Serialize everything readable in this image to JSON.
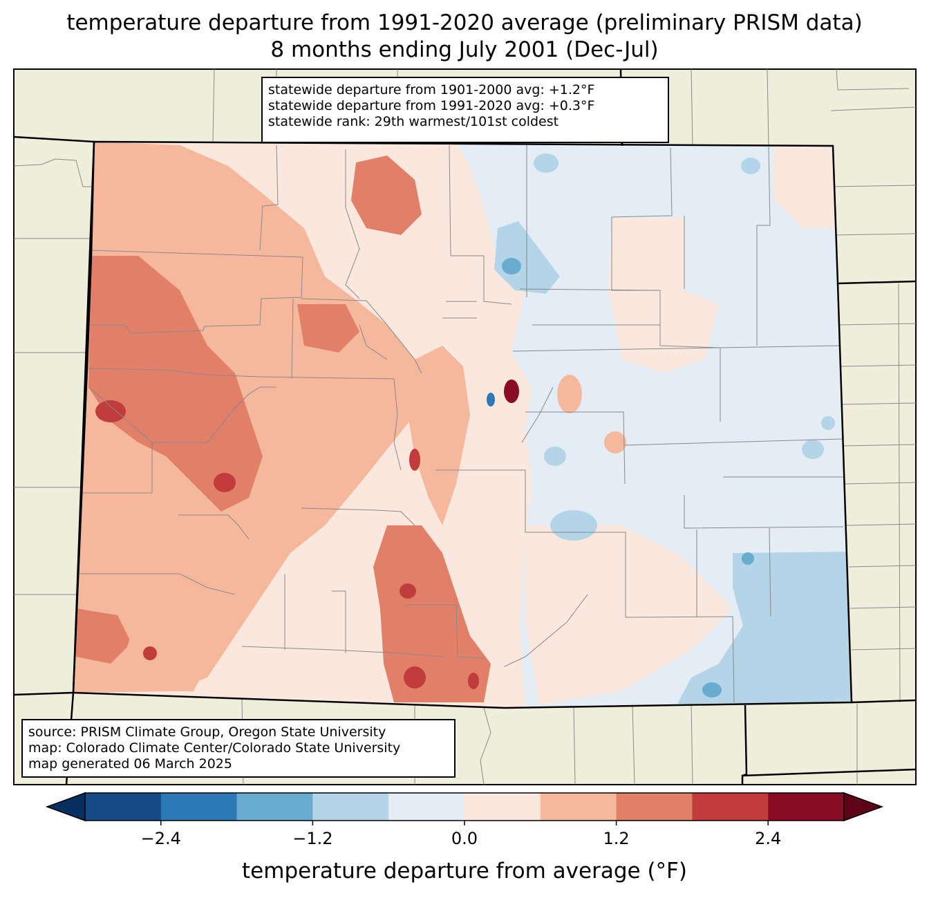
{
  "title": {
    "line1": "temperature departure from 1991-2020 average (preliminary PRISM data)",
    "line2": "8 months ending July 2001 (Dec-Jul)"
  },
  "stats": {
    "line1": "statewide departure from 1901-2000 avg: +1.2°F",
    "line2": "statewide departure from 1991-2020 avg: +0.3°F",
    "line3": "statewide rank: 29th warmest/101st coldest"
  },
  "source": {
    "line1": "source: PRISM Climate Group, Oregon State University",
    "line2": "map: Colorado Climate Center/Colorado State University",
    "line3": "map generated 06 March 2025"
  },
  "colorbar": {
    "title": "temperature departure from average (°F)",
    "ticks": [
      {
        "value": -2.4,
        "label": "−2.4"
      },
      {
        "value": -1.2,
        "label": "−1.2"
      },
      {
        "value": 0.0,
        "label": "0.0"
      },
      {
        "value": 1.2,
        "label": "1.2"
      },
      {
        "value": 2.4,
        "label": "2.4"
      }
    ],
    "range": [
      -3.0,
      3.0
    ],
    "bins": [
      {
        "from": -3.0,
        "to": -2.4,
        "color": "#144a85"
      },
      {
        "from": -2.4,
        "to": -1.8,
        "color": "#2c79b5"
      },
      {
        "from": -1.8,
        "to": -1.2,
        "color": "#6aacd0"
      },
      {
        "from": -1.2,
        "to": -0.6,
        "color": "#b3d5e7"
      },
      {
        "from": -0.6,
        "to": 0.0,
        "color": "#e4edf5"
      },
      {
        "from": 0.0,
        "to": 0.6,
        "color": "#fae8de"
      },
      {
        "from": 0.6,
        "to": 1.2,
        "color": "#f6b89c"
      },
      {
        "from": 1.2,
        "to": 1.8,
        "color": "#e17f69"
      },
      {
        "from": 1.8,
        "to": 2.4,
        "color": "#c13c3c"
      },
      {
        "from": 2.4,
        "to": 3.0,
        "color": "#880c24"
      }
    ],
    "under_color": "#05305f",
    "over_color": "#5e0418"
  },
  "colors": {
    "land": "#efeedb",
    "state_border": "#000000",
    "county_border": "#888888"
  }
}
